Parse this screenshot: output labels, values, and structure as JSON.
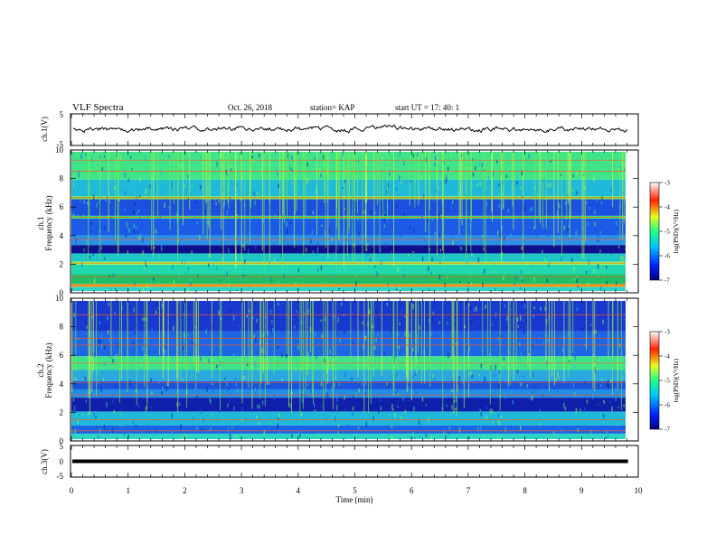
{
  "header": {
    "title": "VLF Spectra",
    "date": "Oct. 26, 2018",
    "station": "station= KAP",
    "start": "start  UT  =   17: 40: 1"
  },
  "chart_data": [
    {
      "type": "line",
      "panel": "ch1_waveform",
      "ylabel": "ch.1(V)",
      "ylim": [
        -5,
        5
      ],
      "yticks": [
        "5",
        "-5"
      ],
      "xlim": [
        0,
        10
      ],
      "trace_color": "#000000"
    },
    {
      "type": "heatmap",
      "panel": "ch1_spectrogram",
      "ylabel": "ch.1\nFrequency (kHz)",
      "ylabel_ch": "ch.1",
      "ylabel_freq": "Frequency (kHz)",
      "ylim": [
        0,
        10
      ],
      "yticks": [
        "0",
        "2",
        "4",
        "6",
        "8",
        "10"
      ],
      "xlim": [
        0,
        9.82
      ],
      "colorbar": {
        "label": "log(PSD)(V²/Hz)",
        "range": [
          -7,
          -3
        ],
        "ticks": [
          "-3",
          "-4",
          "-5",
          "-6",
          "-7"
        ]
      },
      "bands": [
        {
          "f0": 0.0,
          "f1": 0.3,
          "color": "#2dd4c4"
        },
        {
          "f0": 0.3,
          "f1": 0.5,
          "color": "#ff9f1a"
        },
        {
          "f0": 0.5,
          "f1": 1.2,
          "color": "#1fbf6a"
        },
        {
          "f0": 1.2,
          "f1": 1.9,
          "color": "#22d8b0"
        },
        {
          "f0": 1.9,
          "f1": 2.1,
          "color": "#9bff4a"
        },
        {
          "f0": 2.1,
          "f1": 2.7,
          "color": "#1ec6c6"
        },
        {
          "f0": 2.7,
          "f1": 3.3,
          "color": "#10108f"
        },
        {
          "f0": 3.3,
          "f1": 4.0,
          "color": "#2a8fe6"
        },
        {
          "f0": 4.0,
          "f1": 5.2,
          "color": "#1c5be8"
        },
        {
          "f0": 5.2,
          "f1": 5.4,
          "color": "#3fd86a"
        },
        {
          "f0": 5.4,
          "f1": 6.6,
          "color": "#1a4fe0"
        },
        {
          "f0": 6.6,
          "f1": 6.8,
          "color": "#7af04a"
        },
        {
          "f0": 6.8,
          "f1": 8.0,
          "color": "#1fb9d9"
        },
        {
          "f0": 8.0,
          "f1": 10.0,
          "color": "#3fe48a"
        }
      ],
      "tones_khz": [
        0.4,
        1.0,
        2.0,
        3.7,
        5.3,
        6.7,
        8.6,
        9.4
      ]
    },
    {
      "type": "heatmap",
      "panel": "ch2_spectrogram",
      "ylabel": "ch.2\nFrequency (kHz)",
      "ylabel_ch": "ch.2",
      "ylabel_freq": "Frequency (kHz)",
      "ylim": [
        0,
        10
      ],
      "yticks": [
        "0",
        "2",
        "4",
        "6",
        "8",
        "10"
      ],
      "xlim": [
        0,
        9.82
      ],
      "colorbar": {
        "label": "log(PSD)(V²/Hz)",
        "range": [
          -7,
          -3
        ],
        "ticks": [
          "-3",
          "-4",
          "-5",
          "-6",
          "-7"
        ]
      },
      "bands": [
        {
          "f0": 0.0,
          "f1": 0.4,
          "color": "#2dd4c4"
        },
        {
          "f0": 0.4,
          "f1": 1.0,
          "color": "#1b63e6"
        },
        {
          "f0": 1.0,
          "f1": 2.0,
          "color": "#1fb9d9"
        },
        {
          "f0": 2.0,
          "f1": 3.0,
          "color": "#0f1faa"
        },
        {
          "f0": 3.0,
          "f1": 3.6,
          "color": "#1e8ee8"
        },
        {
          "f0": 3.6,
          "f1": 4.2,
          "color": "#1b52dc"
        },
        {
          "f0": 4.2,
          "f1": 5.0,
          "color": "#2aa8e0"
        },
        {
          "f0": 5.0,
          "f1": 6.0,
          "color": "#3fe48a"
        },
        {
          "f0": 6.0,
          "f1": 7.8,
          "color": "#1d66e4"
        },
        {
          "f0": 7.8,
          "f1": 10.0,
          "color": "#1838cf"
        }
      ],
      "tones_khz": [
        0.6,
        1.4,
        3.2,
        4.1,
        5.5,
        6.8,
        7.3,
        9.0
      ]
    },
    {
      "type": "line",
      "panel": "ch3_waveform",
      "ylabel": "ch.3(V)",
      "ylim": [
        -5,
        5
      ],
      "yticks": [
        "5",
        "0",
        "-5"
      ],
      "xlim": [
        0,
        10
      ],
      "trace_color": "#000000"
    }
  ],
  "xaxis": {
    "label": "Time (min)",
    "range": [
      0,
      10
    ],
    "ticks": [
      "0",
      "1",
      "2",
      "3",
      "4",
      "5",
      "6",
      "7",
      "8",
      "9",
      "10"
    ]
  }
}
